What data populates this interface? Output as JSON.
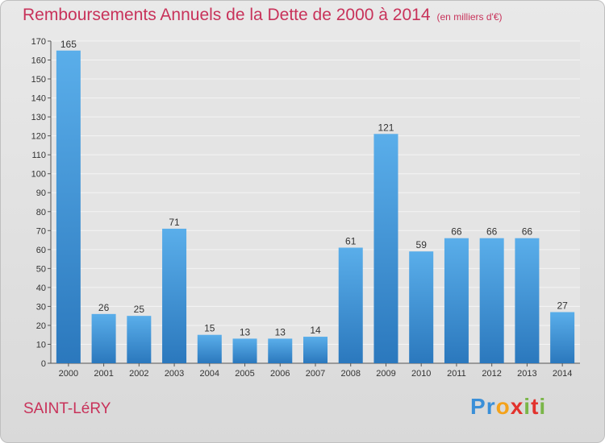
{
  "header": {
    "title": "Remboursements Annuels de la Dette de 2000 à 2014",
    "unit": "(en milliers d'€)"
  },
  "footer": {
    "commune": "SAINT-LéRY",
    "brand": [
      "P",
      "r",
      "o",
      "x",
      "i",
      "t",
      "i"
    ],
    "brand_colors": [
      "#3a8fd8",
      "#3a8fd8",
      "#f4a21a",
      "#e2322d",
      "#7ab648",
      "#e2322d",
      "#7ab648"
    ]
  },
  "chart_data": {
    "type": "bar",
    "title": "Remboursements Annuels de la Dette de 2000 à 2014",
    "categories": [
      "2000",
      "2001",
      "2002",
      "2003",
      "2004",
      "2005",
      "2006",
      "2007",
      "2008",
      "2009",
      "2010",
      "2011",
      "2012",
      "2013",
      "2014"
    ],
    "values": [
      165,
      26,
      25,
      71,
      15,
      13,
      13,
      14,
      61,
      121,
      59,
      66,
      66,
      66,
      27
    ],
    "ylim": [
      0,
      170
    ],
    "yticks": [
      0,
      10,
      20,
      30,
      40,
      50,
      60,
      70,
      80,
      90,
      100,
      110,
      120,
      130,
      140,
      150,
      160,
      170
    ],
    "grid": true,
    "bar_color": "#4a9fe0"
  }
}
